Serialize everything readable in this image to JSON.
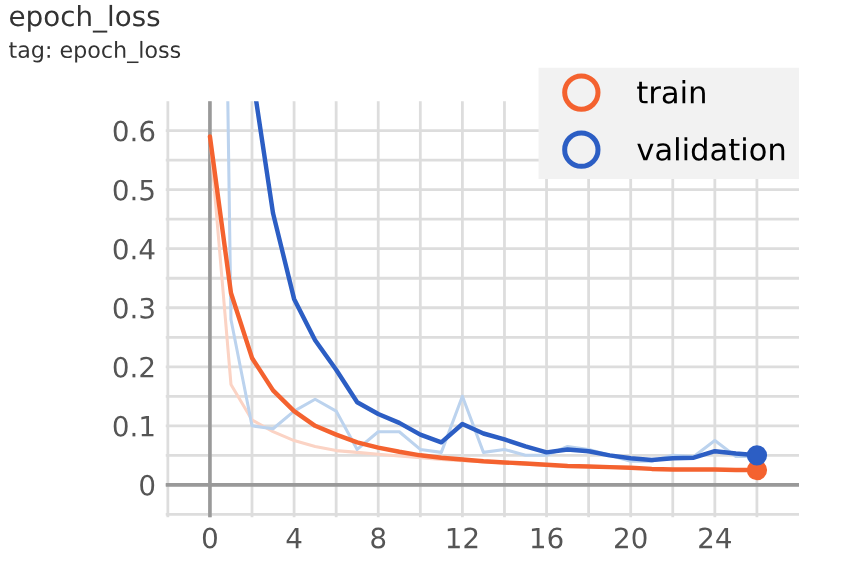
{
  "chart_data": {
    "type": "line",
    "title": "epoch_loss",
    "subtitle": "tag: epoch_loss",
    "xlim": [
      -2.1,
      28
    ],
    "ylim": [
      -0.055,
      0.65
    ],
    "xticks": [
      {
        "value": -2,
        "label": null
      },
      0,
      {
        "value": 2,
        "label": null
      },
      4,
      {
        "value": 6,
        "label": null
      },
      8,
      {
        "value": 10,
        "label": null
      },
      12,
      {
        "value": 14,
        "label": null
      },
      16,
      {
        "value": 18,
        "label": null
      },
      20,
      {
        "value": 22,
        "label": null
      },
      24,
      {
        "value": 26,
        "label": null
      }
    ],
    "yticks": [
      {
        "value": -0.05,
        "label": null
      },
      0,
      {
        "value": 0.05,
        "label": null
      },
      0.1,
      {
        "value": 0.15,
        "label": null
      },
      0.2,
      {
        "value": 0.25,
        "label": null
      },
      0.3,
      {
        "value": 0.35,
        "label": null
      },
      0.4,
      {
        "value": 0.45,
        "label": null
      },
      0.5,
      {
        "value": 0.55,
        "label": null
      },
      0.6
    ],
    "grid": true,
    "legend": "top right",
    "line_style": "solid",
    "series": [
      {
        "color": "#fbd3c4",
        "x": [
          0,
          1,
          2,
          3,
          4,
          5,
          6,
          7,
          8,
          9,
          10,
          11,
          12,
          13,
          14,
          15,
          16,
          17,
          18,
          19,
          20,
          21,
          22,
          23,
          24,
          25,
          26
        ],
        "values": [
          0.59,
          0.17,
          0.11,
          0.09,
          0.075,
          0.065,
          0.058,
          0.055,
          0.052,
          0.049,
          0.046,
          0.043,
          0.041,
          0.039,
          0.037,
          0.035,
          0.033,
          0.032,
          0.031,
          0.03,
          0.029,
          0.027,
          0.026,
          0.026,
          0.026,
          0.025,
          0.025
        ]
      },
      {
        "color": "#bcd3ee",
        "x": [
          0.85,
          1,
          2,
          3,
          4,
          5,
          6,
          7,
          8,
          9,
          10,
          11,
          12,
          13,
          14,
          15,
          16,
          17,
          18,
          19,
          20,
          21,
          22,
          23,
          24,
          25,
          26
        ],
        "values": [
          0.65,
          0.28,
          0.1,
          0.095,
          0.125,
          0.145,
          0.125,
          0.06,
          0.09,
          0.09,
          0.06,
          0.055,
          0.15,
          0.055,
          0.06,
          0.05,
          0.05,
          0.065,
          0.06,
          0.05,
          0.04,
          0.04,
          0.05,
          0.048,
          0.075,
          0.048,
          0.048
        ]
      },
      {
        "name": "train",
        "color": "#f4622f",
        "x": [
          0,
          1,
          2,
          3,
          4,
          5,
          6,
          7,
          8,
          9,
          10,
          11,
          12,
          13,
          14,
          15,
          16,
          17,
          18,
          19,
          20,
          21,
          22,
          23,
          24,
          25,
          26
        ],
        "values": [
          0.59,
          0.325,
          0.215,
          0.16,
          0.125,
          0.1,
          0.085,
          0.072,
          0.063,
          0.056,
          0.05,
          0.046,
          0.043,
          0.04,
          0.038,
          0.036,
          0.034,
          0.032,
          0.031,
          0.03,
          0.029,
          0.027,
          0.026,
          0.026,
          0.026,
          0.025,
          0.025
        ]
      },
      {
        "name": "validation",
        "color": "#2c5ec4",
        "x": [
          2.2,
          3,
          4,
          5,
          6,
          7,
          8,
          9,
          10,
          11,
          12,
          13,
          14,
          15,
          16,
          17,
          18,
          19,
          20,
          21,
          22,
          23,
          24,
          25,
          26
        ],
        "values": [
          0.65,
          0.46,
          0.315,
          0.245,
          0.195,
          0.14,
          0.12,
          0.105,
          0.085,
          0.072,
          0.103,
          0.087,
          0.077,
          0.065,
          0.055,
          0.06,
          0.057,
          0.05,
          0.045,
          0.042,
          0.045,
          0.046,
          0.057,
          0.053,
          0.05
        ]
      },
      {
        "type": "scatter",
        "color": "#f4622f",
        "x": [
          26
        ],
        "values": [
          0.025
        ]
      },
      {
        "type": "scatter",
        "color": "#2c5ec4",
        "x": [
          26
        ],
        "values": [
          0.05
        ]
      }
    ]
  }
}
